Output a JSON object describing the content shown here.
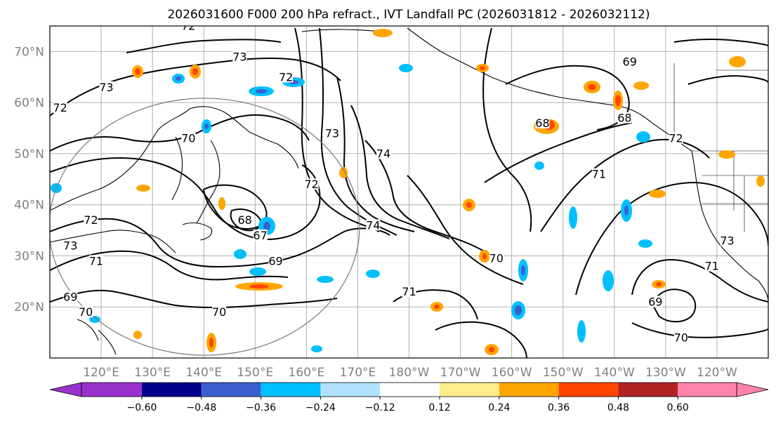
{
  "title": "2026031600 F000 200 hPa refract., IVT Landfall PC (2026031812 - 2026032112)",
  "lat_labels": [
    "70°N",
    "60°N",
    "50°N",
    "40°N",
    "30°N",
    "20°N"
  ],
  "lon_labels": [
    "120°E",
    "130°E",
    "140°E",
    "150°E",
    "160°E",
    "170°E",
    "180°W",
    "170°W",
    "160°W",
    "150°W",
    "140°W",
    "130°W",
    "120°W"
  ],
  "map": {
    "lat_range": [
      10,
      75
    ],
    "lon_range_deg_east": [
      110,
      250
    ],
    "grid": true,
    "circle_center": {
      "lat": 35,
      "lon": 145
    }
  },
  "colorbar": {
    "tick_labels": [
      "−0.60",
      "−0.48",
      "−0.36",
      "−0.24",
      "−0.12",
      "0.12",
      "0.24",
      "0.36",
      "0.48",
      "0.60"
    ],
    "colors": [
      "#9932cc",
      "#00008b",
      "#3a5fcd",
      "#00bfff",
      "#b0e2ff",
      "#ffffff",
      "#ffec8b",
      "#ffa500",
      "#ff4500",
      "#b22222",
      "#ff82ab"
    ],
    "extend": "both"
  },
  "contour_labels": [
    {
      "text": "72",
      "lat": 74.5,
      "lon": 137
    },
    {
      "text": "73",
      "lat": 68.5,
      "lon": 147
    },
    {
      "text": "73",
      "lat": 62.5,
      "lon": 121
    },
    {
      "text": "72",
      "lat": 64.5,
      "lon": 156
    },
    {
      "text": "72",
      "lat": 58.5,
      "lon": 112
    },
    {
      "text": "70",
      "lat": 52.5,
      "lon": 137
    },
    {
      "text": "73",
      "lat": 53.5,
      "lon": 165
    },
    {
      "text": "74",
      "lat": 49.5,
      "lon": 175
    },
    {
      "text": "72",
      "lat": 43.5,
      "lon": 161
    },
    {
      "text": "68",
      "lat": 36.5,
      "lon": 148
    },
    {
      "text": "67",
      "lat": 33.5,
      "lon": 151
    },
    {
      "text": "69",
      "lat": 28.5,
      "lon": 154
    },
    {
      "text": "72",
      "lat": 36.5,
      "lon": 118
    },
    {
      "text": "73",
      "lat": 31.5,
      "lon": 114
    },
    {
      "text": "71",
      "lat": 28.5,
      "lon": 119
    },
    {
      "text": "69",
      "lat": 21.5,
      "lon": 114
    },
    {
      "text": "70",
      "lat": 18.5,
      "lon": 117
    },
    {
      "text": "70",
      "lat": 18.5,
      "lon": 143
    },
    {
      "text": "74",
      "lat": 35.5,
      "lon": 173
    },
    {
      "text": "70",
      "lat": 29.0,
      "lon": 197
    },
    {
      "text": "71",
      "lat": 22.5,
      "lon": 180
    },
    {
      "text": "69",
      "lat": 67.5,
      "lon": 223
    },
    {
      "text": "68",
      "lat": 55.5,
      "lon": 206
    },
    {
      "text": "68",
      "lat": 56.5,
      "lon": 222
    },
    {
      "text": "72",
      "lat": 52.5,
      "lon": 232
    },
    {
      "text": "71",
      "lat": 45.5,
      "lon": 217
    },
    {
      "text": "73",
      "lat": 32.5,
      "lon": 242
    },
    {
      "text": "71",
      "lat": 27.5,
      "lon": 239
    },
    {
      "text": "69",
      "lat": 20.5,
      "lon": 228
    },
    {
      "text": "70",
      "lat": 13.5,
      "lon": 233
    }
  ]
}
